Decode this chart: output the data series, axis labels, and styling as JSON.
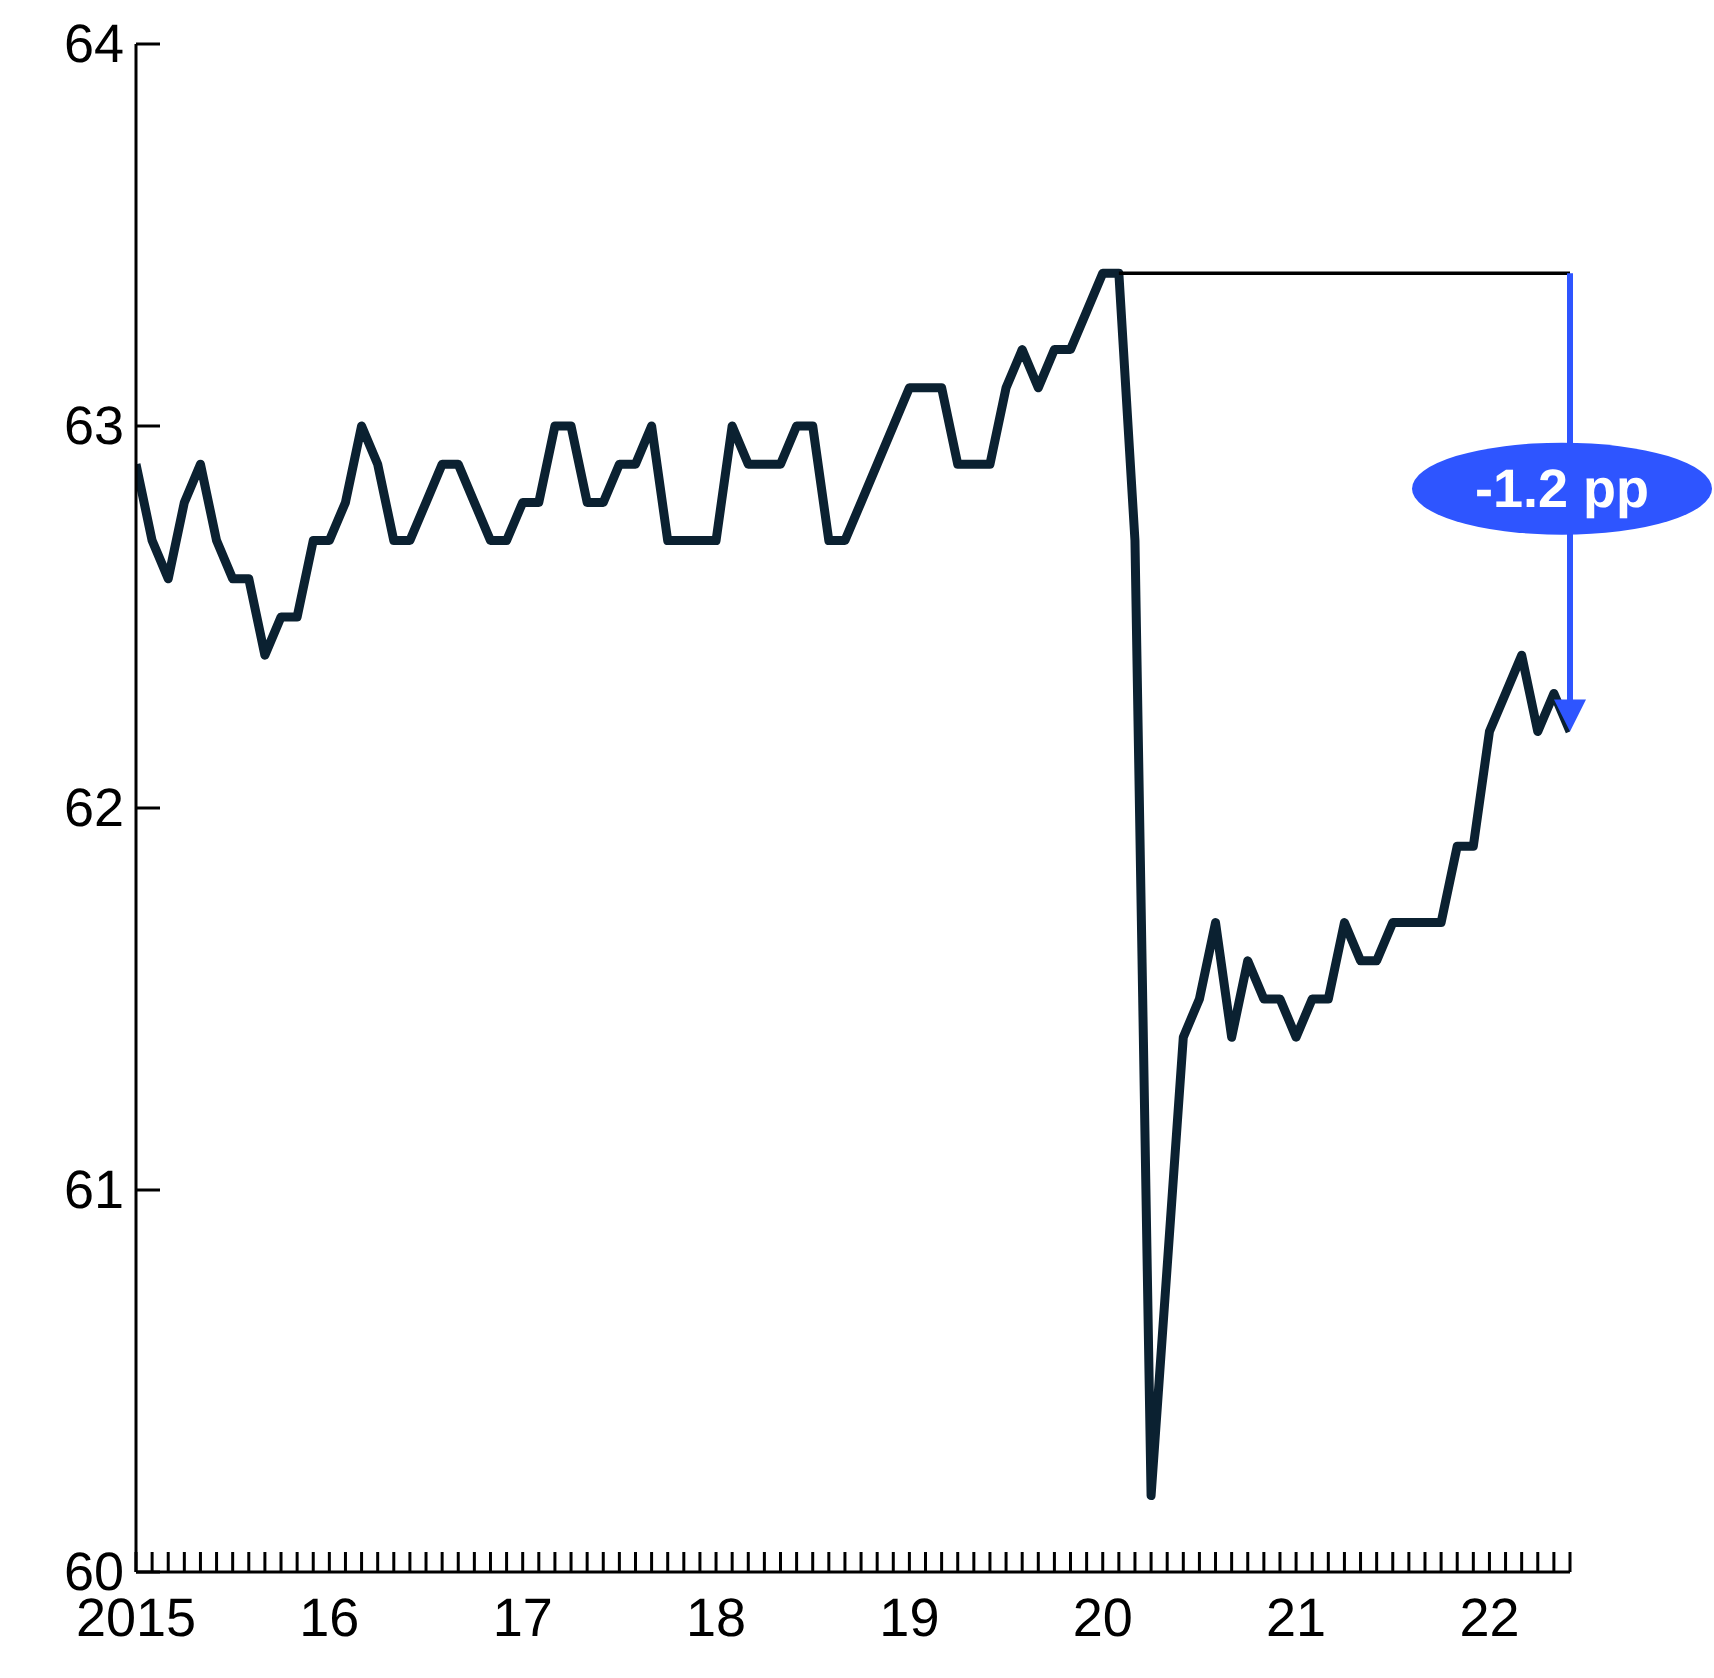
{
  "chart_data": {
    "type": "line",
    "x": [
      "2015-01",
      "2015-02",
      "2015-03",
      "2015-04",
      "2015-05",
      "2015-06",
      "2015-07",
      "2015-08",
      "2015-09",
      "2015-10",
      "2015-11",
      "2015-12",
      "2016-01",
      "2016-02",
      "2016-03",
      "2016-04",
      "2016-05",
      "2016-06",
      "2016-07",
      "2016-08",
      "2016-09",
      "2016-10",
      "2016-11",
      "2016-12",
      "2017-01",
      "2017-02",
      "2017-03",
      "2017-04",
      "2017-05",
      "2017-06",
      "2017-07",
      "2017-08",
      "2017-09",
      "2017-10",
      "2017-11",
      "2017-12",
      "2018-01",
      "2018-02",
      "2018-03",
      "2018-04",
      "2018-05",
      "2018-06",
      "2018-07",
      "2018-08",
      "2018-09",
      "2018-10",
      "2018-11",
      "2018-12",
      "2019-01",
      "2019-02",
      "2019-03",
      "2019-04",
      "2019-05",
      "2019-06",
      "2019-07",
      "2019-08",
      "2019-09",
      "2019-10",
      "2019-11",
      "2019-12",
      "2020-01",
      "2020-02",
      "2020-03",
      "2020-04",
      "2020-05",
      "2020-06",
      "2020-07",
      "2020-08",
      "2020-09",
      "2020-10",
      "2020-11",
      "2020-12",
      "2021-01",
      "2021-02",
      "2021-03",
      "2021-04",
      "2021-05",
      "2021-06",
      "2021-07",
      "2021-08",
      "2021-09",
      "2021-10",
      "2021-11",
      "2021-12",
      "2022-01",
      "2022-02",
      "2022-03",
      "2022-04",
      "2022-05",
      "2022-06"
    ],
    "series": [
      {
        "color": "#0b2131",
        "values": [
          62.9,
          62.7,
          62.6,
          62.8,
          62.9,
          62.7,
          62.6,
          62.6,
          62.4,
          62.5,
          62.5,
          62.7,
          62.7,
          62.8,
          63.0,
          62.9,
          62.7,
          62.7,
          62.8,
          62.9,
          62.9,
          62.8,
          62.7,
          62.7,
          62.8,
          62.8,
          63.0,
          63.0,
          62.8,
          62.8,
          62.9,
          62.9,
          63.0,
          62.7,
          62.7,
          62.7,
          62.7,
          63.0,
          62.9,
          62.9,
          62.9,
          63.0,
          63.0,
          62.7,
          62.7,
          62.8,
          62.9,
          63.0,
          63.1,
          63.1,
          63.1,
          62.9,
          62.9,
          62.9,
          63.1,
          63.2,
          63.1,
          63.2,
          63.2,
          63.3,
          63.4,
          63.4,
          62.7,
          60.2,
          60.8,
          61.4,
          61.5,
          61.7,
          61.4,
          61.6,
          61.5,
          61.5,
          61.4,
          61.5,
          61.5,
          61.7,
          61.6,
          61.6,
          61.7,
          61.7,
          61.7,
          61.7,
          61.9,
          61.9,
          62.2,
          62.3,
          62.4,
          62.2,
          62.3,
          62.2
        ]
      },
      {
        "color": "#000000",
        "x": [
          "2020-02",
          "2022-06"
        ],
        "values": [
          63.4,
          63.4
        ]
      }
    ],
    "annotations": [
      "-1.2 pp"
    ],
    "xlim": [
      "2015-01",
      "2022-06"
    ],
    "xticks": [
      {
        "value": "2015-01",
        "label": "2015"
      },
      {
        "value": "2015-02",
        "label": null
      },
      {
        "value": "2015-03",
        "label": null
      },
      {
        "value": "2015-04",
        "label": null
      },
      {
        "value": "2015-05",
        "label": null
      },
      {
        "value": "2015-06",
        "label": null
      },
      {
        "value": "2015-07",
        "label": null
      },
      {
        "value": "2015-08",
        "label": null
      },
      {
        "value": "2015-09",
        "label": null
      },
      {
        "value": "2015-10",
        "label": null
      },
      {
        "value": "2015-11",
        "label": null
      },
      {
        "value": "2015-12",
        "label": null
      },
      {
        "value": "2016-01",
        "label": "16"
      },
      {
        "value": "2016-02",
        "label": null
      },
      {
        "value": "2016-03",
        "label": null
      },
      {
        "value": "2016-04",
        "label": null
      },
      {
        "value": "2016-05",
        "label": null
      },
      {
        "value": "2016-06",
        "label": null
      },
      {
        "value": "2016-07",
        "label": null
      },
      {
        "value": "2016-08",
        "label": null
      },
      {
        "value": "2016-09",
        "label": null
      },
      {
        "value": "2016-10",
        "label": null
      },
      {
        "value": "2016-11",
        "label": null
      },
      {
        "value": "2016-12",
        "label": null
      },
      {
        "value": "2017-01",
        "label": "17"
      },
      {
        "value": "2017-02",
        "label": null
      },
      {
        "value": "2017-03",
        "label": null
      },
      {
        "value": "2017-04",
        "label": null
      },
      {
        "value": "2017-05",
        "label": null
      },
      {
        "value": "2017-06",
        "label": null
      },
      {
        "value": "2017-07",
        "label": null
      },
      {
        "value": "2017-08",
        "label": null
      },
      {
        "value": "2017-09",
        "label": null
      },
      {
        "value": "2017-10",
        "label": null
      },
      {
        "value": "2017-11",
        "label": null
      },
      {
        "value": "2017-12",
        "label": null
      },
      {
        "value": "2018-01",
        "label": "18"
      },
      {
        "value": "2018-02",
        "label": null
      },
      {
        "value": "2018-03",
        "label": null
      },
      {
        "value": "2018-04",
        "label": null
      },
      {
        "value": "2018-05",
        "label": null
      },
      {
        "value": "2018-06",
        "label": null
      },
      {
        "value": "2018-07",
        "label": null
      },
      {
        "value": "2018-08",
        "label": null
      },
      {
        "value": "2018-09",
        "label": null
      },
      {
        "value": "2018-10",
        "label": null
      },
      {
        "value": "2018-11",
        "label": null
      },
      {
        "value": "2018-12",
        "label": null
      },
      {
        "value": "2019-01",
        "label": "19"
      },
      {
        "value": "2019-02",
        "label": null
      },
      {
        "value": "2019-03",
        "label": null
      },
      {
        "value": "2019-04",
        "label": null
      },
      {
        "value": "2019-05",
        "label": null
      },
      {
        "value": "2019-06",
        "label": null
      },
      {
        "value": "2019-07",
        "label": null
      },
      {
        "value": "2019-08",
        "label": null
      },
      {
        "value": "2019-09",
        "label": null
      },
      {
        "value": "2019-10",
        "label": null
      },
      {
        "value": "2019-11",
        "label": null
      },
      {
        "value": "2019-12",
        "label": null
      },
      {
        "value": "2020-01",
        "label": "20"
      },
      {
        "value": "2020-02",
        "label": null
      },
      {
        "value": "2020-03",
        "label": null
      },
      {
        "value": "2020-04",
        "label": null
      },
      {
        "value": "2020-05",
        "label": null
      },
      {
        "value": "2020-06",
        "label": null
      },
      {
        "value": "2020-07",
        "label": null
      },
      {
        "value": "2020-08",
        "label": null
      },
      {
        "value": "2020-09",
        "label": null
      },
      {
        "value": "2020-10",
        "label": null
      },
      {
        "value": "2020-11",
        "label": null
      },
      {
        "value": "2020-12",
        "label": null
      },
      {
        "value": "2021-01",
        "label": "21"
      },
      {
        "value": "2021-02",
        "label": null
      },
      {
        "value": "2021-03",
        "label": null
      },
      {
        "value": "2021-04",
        "label": null
      },
      {
        "value": "2021-05",
        "label": null
      },
      {
        "value": "2021-06",
        "label": null
      },
      {
        "value": "2021-07",
        "label": null
      },
      {
        "value": "2021-08",
        "label": null
      },
      {
        "value": "2021-09",
        "label": null
      },
      {
        "value": "2021-10",
        "label": null
      },
      {
        "value": "2021-11",
        "label": null
      },
      {
        "value": "2021-12",
        "label": null
      },
      {
        "value": "2022-01",
        "label": "22"
      },
      {
        "value": "2022-02",
        "label": null
      },
      {
        "value": "2022-03",
        "label": null
      },
      {
        "value": "2022-04",
        "label": null
      },
      {
        "value": "2022-05",
        "label": null
      },
      {
        "value": "2022-06",
        "label": null
      }
    ],
    "ylim": [
      60,
      64
    ],
    "yticks": [
      60,
      61,
      62,
      63,
      64
    ],
    "marker": "none",
    "line_style": "solid"
  }
}
